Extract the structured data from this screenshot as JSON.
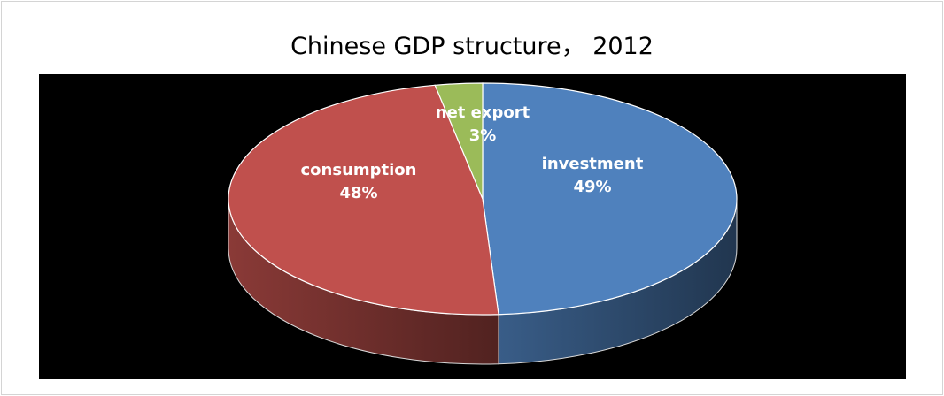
{
  "chart_data": {
    "type": "pie",
    "title": "Chinese GDP structure， 2012",
    "categories": [
      "investment",
      "consumption",
      "net export"
    ],
    "values": [
      49,
      48,
      3
    ],
    "value_labels": [
      "49%",
      "48%",
      "3%"
    ],
    "colors": [
      "#4f81bd",
      "#c0504d",
      "#9bbb59"
    ],
    "background": "#000000",
    "legend": "none",
    "style": "3d"
  }
}
